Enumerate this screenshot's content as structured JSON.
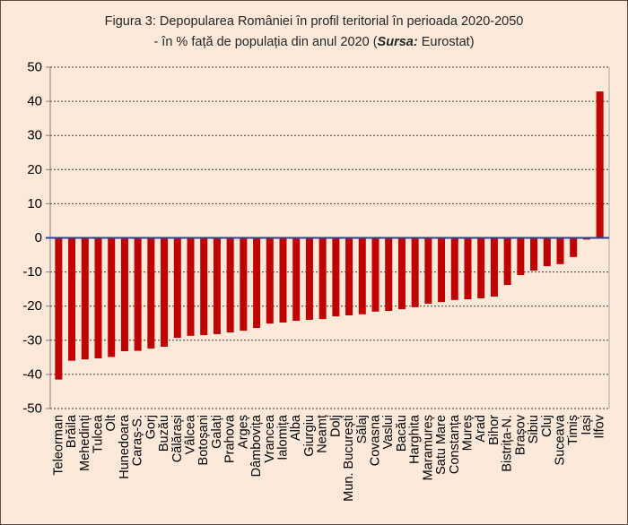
{
  "chart_data": {
    "type": "bar",
    "title": "Figura 3: Depopularea României în profil teritorial în perioada 2020-2050",
    "subtitle": {
      "before": "- în % față de populația din anul 2020 (",
      "source_label": "Sursa:",
      "after": " Eurostat)"
    },
    "categories": [
      "Teleorman",
      "Brăila",
      "Mehedinți",
      "Tulcea",
      "Olt",
      "Hunedoara",
      "Caraș-S.",
      "Gorj",
      "Buzău",
      "Călărași",
      "Vâlcea",
      "Botoșani",
      "Galați",
      "Prahova",
      "Argeș",
      "Dâmbovița",
      "Vrancea",
      "Ialomița",
      "Alba",
      "Giurgiu",
      "Neamț",
      "Dolj",
      "Mun. București",
      "Sălaj",
      "Covasna",
      "Vaslui",
      "Bacău",
      "Harghita",
      "Maramureș",
      "Satu Mare",
      "Constanța",
      "Mureș",
      "Arad",
      "Bihor",
      "Bistrița-N.",
      "Brașov",
      "Sibiu",
      "Cluj",
      "Suceava",
      "Timiș",
      "Iași",
      "Ilfov"
    ],
    "values": [
      -41.5,
      -36.0,
      -35.6,
      -35.3,
      -34.9,
      -33.2,
      -33.1,
      -32.4,
      -31.9,
      -29.3,
      -28.7,
      -28.5,
      -28.2,
      -27.7,
      -27.2,
      -26.4,
      -25.1,
      -24.8,
      -24.3,
      -24.0,
      -23.8,
      -23.0,
      -22.7,
      -22.4,
      -21.6,
      -21.4,
      -20.9,
      -20.3,
      -19.3,
      -18.8,
      -18.2,
      -18.0,
      -17.7,
      -17.2,
      -13.8,
      -10.9,
      -9.6,
      -8.3,
      -7.7,
      -5.6,
      -0.5,
      42.9
    ],
    "ylim": [
      -50,
      50
    ],
    "yticks": [
      50,
      40,
      30,
      20,
      10,
      0,
      -10,
      -20,
      -30,
      -40,
      -50
    ],
    "grid": true,
    "legend": "none",
    "colors": {
      "background": "#FDE9D9",
      "bar": "#C00000",
      "zero_line": "#2F3F9B"
    }
  }
}
